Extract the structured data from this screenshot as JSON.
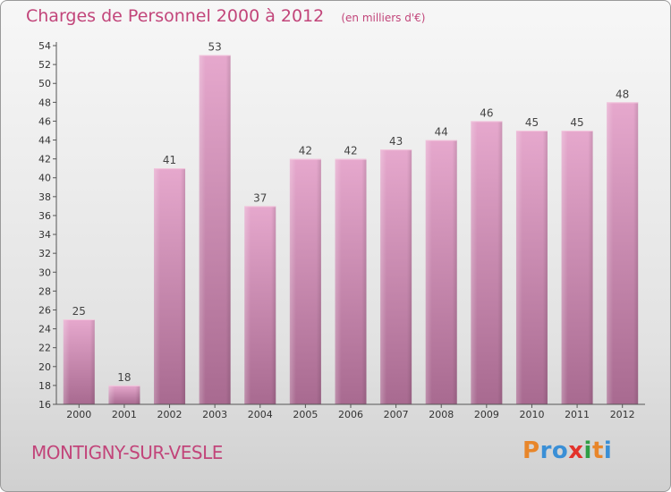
{
  "header": {
    "title": "Charges de Personnel 2000 à 2012",
    "subtitle": "(en milliers d'€)"
  },
  "footer": {
    "commune": "MONTIGNY-SUR-VESLE",
    "logo_letters": [
      "P",
      "r",
      "o",
      "x",
      "i",
      "t",
      "i"
    ],
    "logo_colors": [
      "#e8862a",
      "#3a8fd6",
      "#3a8fd6",
      "#e3322b",
      "#2f9e44",
      "#e8862a",
      "#3a8fd6"
    ]
  },
  "chart_data": {
    "type": "bar",
    "title": "Charges de Personnel 2000 à 2012",
    "subtitle": "(en milliers d'€)",
    "categories": [
      "2000",
      "2001",
      "2002",
      "2003",
      "2004",
      "2005",
      "2006",
      "2007",
      "2008",
      "2009",
      "2010",
      "2011",
      "2012"
    ],
    "values": [
      25,
      18,
      41,
      53,
      37,
      42,
      42,
      43,
      44,
      46,
      45,
      45,
      48
    ],
    "ylim": [
      16,
      54
    ],
    "yticks": [
      16,
      18,
      20,
      22,
      24,
      26,
      28,
      30,
      32,
      34,
      36,
      38,
      40,
      42,
      44,
      46,
      48,
      50,
      52,
      54
    ],
    "grid": false,
    "bar_color": "#d890b8",
    "label_color": "#444444",
    "axis_color": "#555555"
  }
}
